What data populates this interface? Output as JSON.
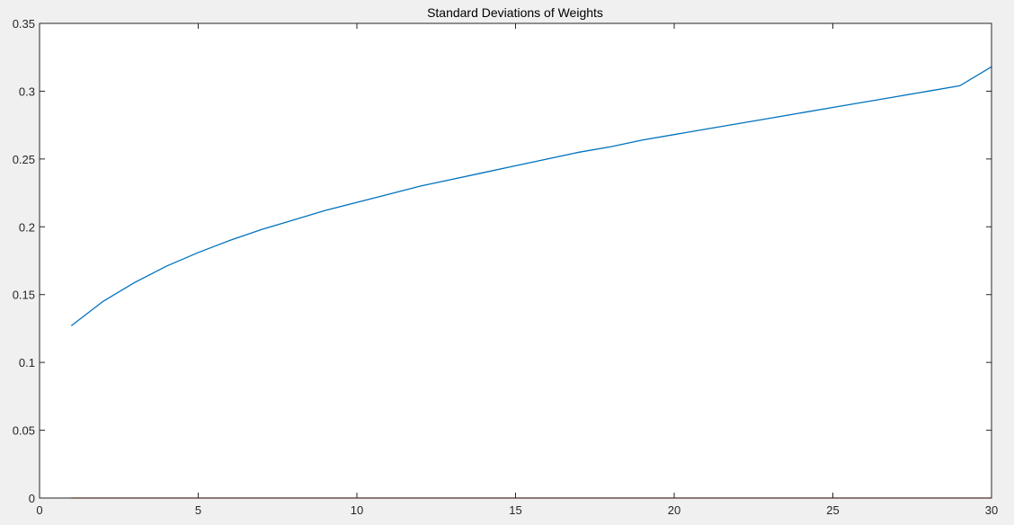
{
  "chart_data": {
    "type": "line",
    "title": "Standard Deviations of Weights",
    "xlabel": "",
    "ylabel": "",
    "xlim": [
      0,
      30
    ],
    "ylim": [
      0,
      0.35
    ],
    "xticks": [
      0,
      5,
      10,
      15,
      20,
      25,
      30
    ],
    "xtick_labels": [
      "0",
      "5",
      "10",
      "15",
      "20",
      "25",
      "30"
    ],
    "yticks": [
      0,
      0.05,
      0.1,
      0.15,
      0.2,
      0.25,
      0.3,
      0.35
    ],
    "ytick_labels": [
      "0",
      "0.05",
      "0.1",
      "0.15",
      "0.2",
      "0.25",
      "0.3",
      "0.35"
    ],
    "grid": false,
    "legend": "none",
    "x": [
      1,
      2,
      3,
      4,
      5,
      6,
      7,
      8,
      9,
      10,
      11,
      12,
      13,
      14,
      15,
      16,
      17,
      18,
      19,
      20,
      21,
      22,
      23,
      24,
      25,
      26,
      27,
      28,
      29,
      30
    ],
    "series": [
      {
        "color": "#0072BD",
        "values": [
          0.127,
          0.145,
          0.159,
          0.171,
          0.181,
          0.19,
          0.198,
          0.205,
          0.212,
          0.218,
          0.224,
          0.23,
          0.235,
          0.24,
          0.245,
          0.25,
          0.255,
          0.259,
          0.264,
          0.268,
          0.272,
          0.276,
          0.28,
          0.284,
          0.288,
          0.292,
          0.296,
          0.3,
          0.304,
          0.318
        ]
      },
      {
        "color": "#D95319",
        "values": [
          0,
          0,
          0,
          0,
          0,
          0,
          0,
          0,
          0,
          0,
          0,
          0,
          0,
          0,
          0,
          0,
          0,
          0,
          0,
          0,
          0,
          0,
          0,
          0,
          0,
          0,
          0,
          0,
          0,
          0
        ]
      }
    ]
  }
}
